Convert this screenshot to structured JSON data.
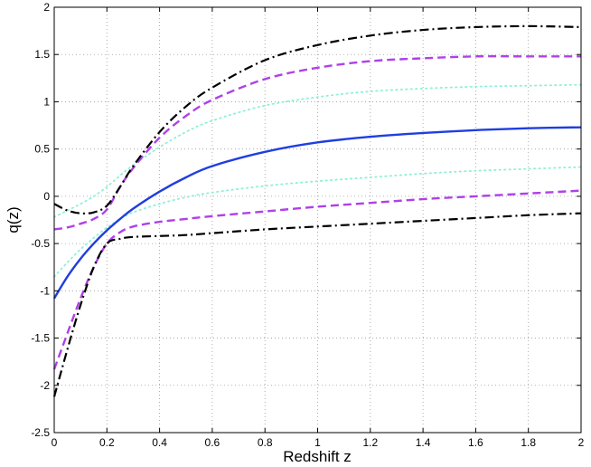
{
  "chart_data": {
    "type": "line",
    "title": "",
    "xlabel": "Redshift z",
    "ylabel": "q(z)",
    "xlim": [
      0,
      2
    ],
    "ylim": [
      -2.5,
      2
    ],
    "xticks": [
      0,
      0.2,
      0.4,
      0.6,
      0.8,
      1,
      1.2,
      1.4,
      1.6,
      1.8,
      2
    ],
    "xtick_labels": [
      "0",
      "0.2",
      "0.4",
      "0.6",
      "0.8",
      "1",
      "1.2",
      "1.4",
      "1.6",
      "1.8",
      "2"
    ],
    "yticks": [
      -2.5,
      -2,
      -1.5,
      -1,
      -0.5,
      0,
      0.5,
      1,
      1.5,
      2
    ],
    "ytick_labels": [
      "-2.5",
      "-2",
      "-1.5",
      "-1",
      "-0.5",
      "0",
      "0.5",
      "1",
      "1.5",
      "2"
    ],
    "grid": true,
    "legend": "none",
    "x": [
      0,
      0.05,
      0.1,
      0.15,
      0.2,
      0.25,
      0.3,
      0.4,
      0.5,
      0.6,
      0.8,
      1.0,
      1.2,
      1.4,
      1.6,
      1.8,
      2.0
    ],
    "series": [
      {
        "style": "solid",
        "color": "#1f3ee0",
        "width": 2.4,
        "values": [
          -1.08,
          -0.85,
          -0.66,
          -0.5,
          -0.36,
          -0.24,
          -0.13,
          0.05,
          0.2,
          0.32,
          0.47,
          0.57,
          0.63,
          0.67,
          0.7,
          0.72,
          0.73
        ]
      },
      {
        "style": "dashed",
        "color": "#b040e8",
        "width": 2.4,
        "values": [
          -0.35,
          -0.33,
          -0.29,
          -0.24,
          -0.14,
          0.1,
          0.3,
          0.62,
          0.85,
          1.02,
          1.24,
          1.36,
          1.43,
          1.46,
          1.48,
          1.48,
          1.48
        ]
      },
      {
        "style": "dashed",
        "color": "#b040e8",
        "width": 2.4,
        "values": [
          -1.83,
          -1.45,
          -1.08,
          -0.75,
          -0.5,
          -0.38,
          -0.32,
          -0.27,
          -0.24,
          -0.21,
          -0.16,
          -0.11,
          -0.07,
          -0.03,
          0.0,
          0.03,
          0.06
        ]
      },
      {
        "style": "dashdot",
        "color": "#000000",
        "width": 2.2,
        "values": [
          -0.08,
          -0.15,
          -0.18,
          -0.17,
          -0.1,
          0.1,
          0.32,
          0.68,
          0.95,
          1.15,
          1.44,
          1.6,
          1.7,
          1.76,
          1.79,
          1.8,
          1.79
        ]
      },
      {
        "style": "dashdot",
        "color": "#000000",
        "width": 2.2,
        "values": [
          -2.12,
          -1.62,
          -1.15,
          -0.75,
          -0.5,
          -0.45,
          -0.43,
          -0.42,
          -0.41,
          -0.39,
          -0.35,
          -0.32,
          -0.29,
          -0.26,
          -0.23,
          -0.2,
          -0.18
        ]
      },
      {
        "style": "dotted",
        "color": "#8ff0d8",
        "width": 1.8,
        "values": [
          -0.22,
          -0.15,
          -0.08,
          0.0,
          0.1,
          0.22,
          0.33,
          0.52,
          0.68,
          0.8,
          0.96,
          1.05,
          1.11,
          1.14,
          1.16,
          1.17,
          1.18
        ]
      },
      {
        "style": "dotted",
        "color": "#8ff0d8",
        "width": 1.8,
        "values": [
          -0.85,
          -0.7,
          -0.56,
          -0.44,
          -0.33,
          -0.24,
          -0.17,
          -0.08,
          -0.01,
          0.04,
          0.11,
          0.16,
          0.2,
          0.24,
          0.27,
          0.29,
          0.31
        ]
      }
    ]
  }
}
